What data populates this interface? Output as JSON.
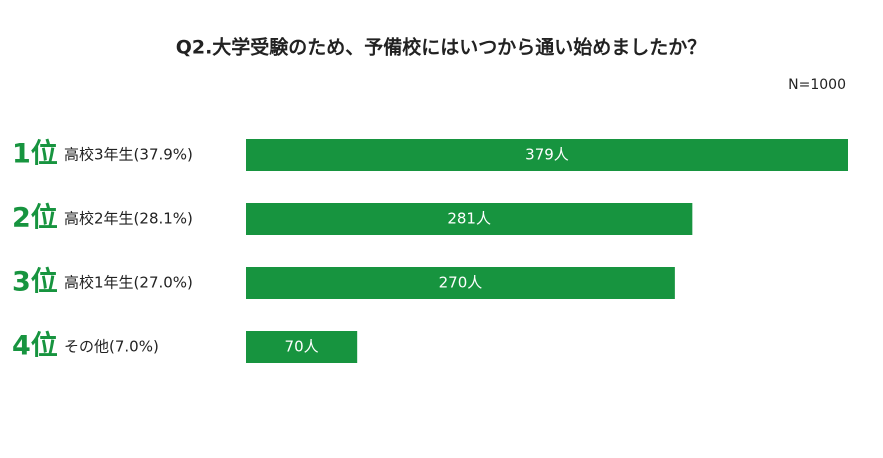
{
  "chart_data": {
    "type": "bar",
    "orientation": "horizontal",
    "title": "Q2.大学受験のため、予備校にはいつから通い始めましたか？",
    "note": "N=1000",
    "ranks": [
      "1位",
      "2位",
      "3位",
      "4位"
    ],
    "categories": [
      "高校3年生(37.9%)",
      "高校2年生(28.1%)",
      "高校1年生(27.0%)",
      "その他(7.0%)"
    ],
    "values": [
      379,
      281,
      270,
      70
    ],
    "value_labels": [
      "379人",
      "281人",
      "270人",
      "70人"
    ],
    "color": "#17943f"
  }
}
